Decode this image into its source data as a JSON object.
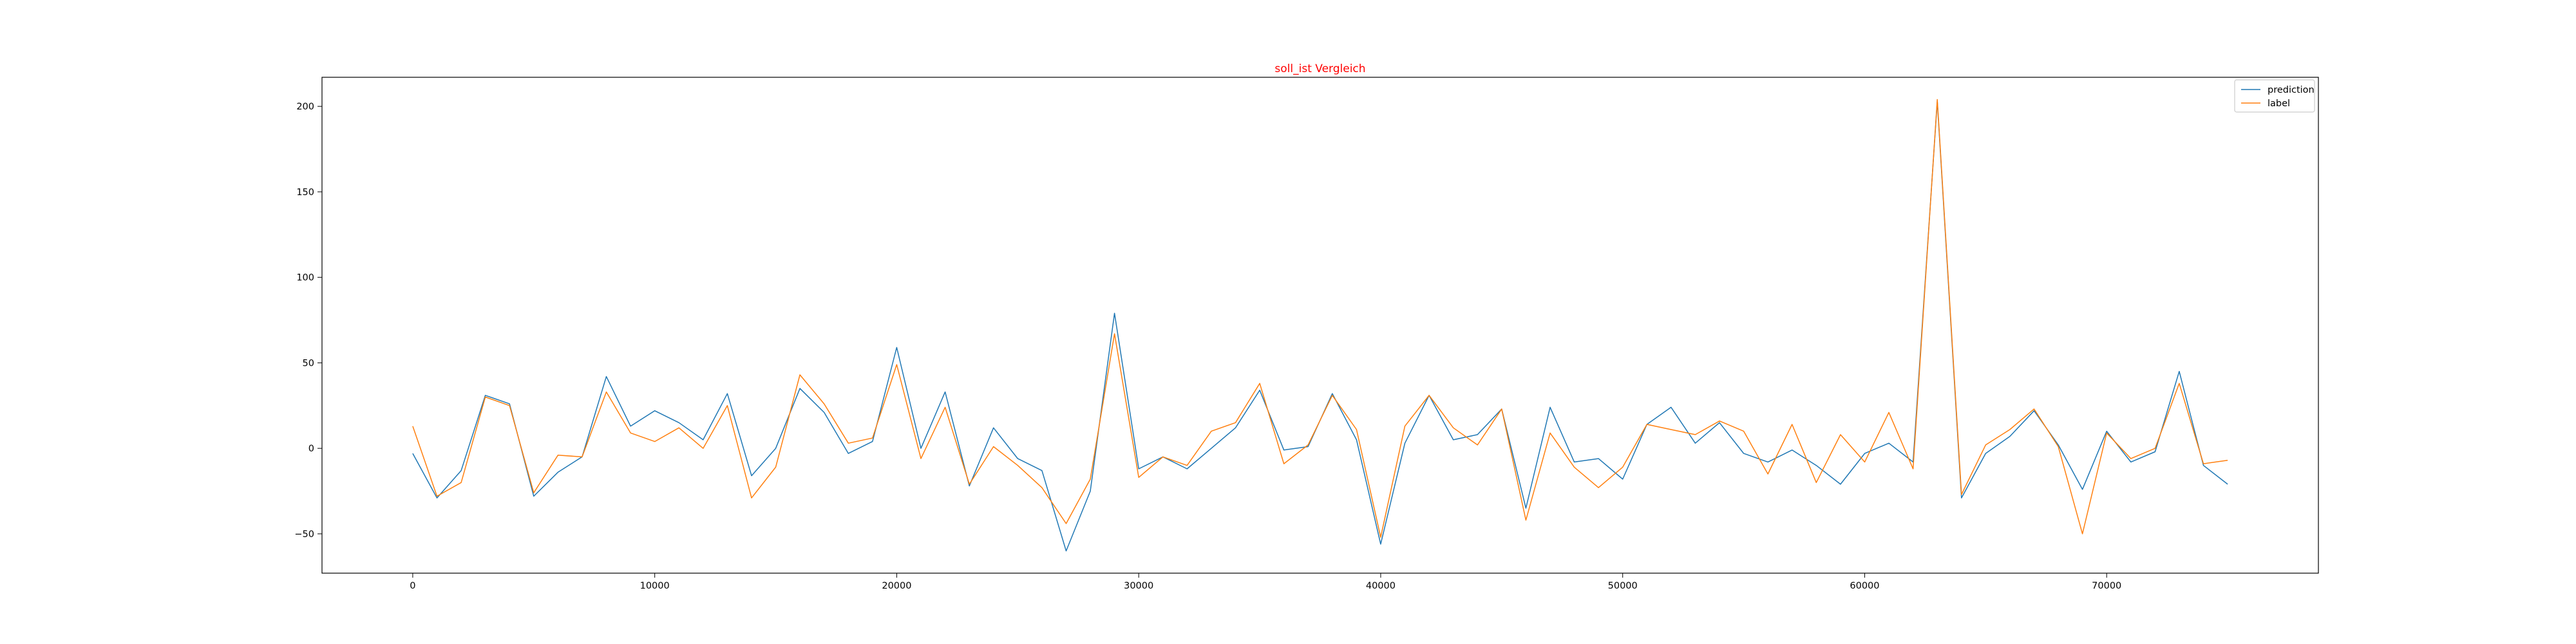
{
  "chart_data": {
    "type": "line",
    "title": "soll_ist Vergleich",
    "title_color": "#ff0000",
    "xlabel": "",
    "ylabel": "",
    "xlim": [
      -3750,
      78750
    ],
    "ylim": [
      -73,
      217
    ],
    "x_ticks": [
      0,
      10000,
      20000,
      30000,
      40000,
      50000,
      60000,
      70000
    ],
    "y_ticks": [
      -50,
      0,
      50,
      100,
      150,
      200
    ],
    "grid": false,
    "legend_position": "upper right",
    "x": [
      0,
      1000,
      2000,
      3000,
      4000,
      5000,
      6000,
      7000,
      8000,
      9000,
      10000,
      11000,
      12000,
      13000,
      14000,
      15000,
      16000,
      17000,
      18000,
      19000,
      20000,
      21000,
      22000,
      23000,
      24000,
      25000,
      26000,
      27000,
      28000,
      29000,
      30000,
      31000,
      32000,
      33000,
      34000,
      35000,
      36000,
      37000,
      38000,
      39000,
      40000,
      41000,
      42000,
      43000,
      44000,
      45000,
      46000,
      47000,
      48000,
      49000,
      50000,
      51000,
      52000,
      53000,
      54000,
      55000,
      56000,
      57000,
      58000,
      59000,
      60000,
      61000,
      62000,
      63000,
      64000,
      65000,
      66000,
      67000,
      68000,
      69000,
      70000,
      71000,
      72000,
      73000,
      74000,
      75000
    ],
    "series": [
      {
        "name": "prediction",
        "color": "#1f77b4",
        "values": [
          -3,
          -29,
          -13,
          31,
          26,
          -28,
          -14,
          -5,
          42,
          13,
          22,
          15,
          5,
          32,
          -16,
          0,
          35,
          21,
          -3,
          4,
          59,
          0,
          33,
          -22,
          12,
          -6,
          -13,
          -60,
          -25,
          79,
          -12,
          -5,
          -12,
          0,
          12,
          34,
          -1,
          1,
          32,
          5,
          -56,
          3,
          31,
          5,
          8,
          23,
          -35,
          24,
          -8,
          -6,
          -18,
          14,
          24,
          3,
          15,
          -3,
          -8,
          -1,
          -10,
          -21,
          -3,
          3,
          -8,
          203,
          -29,
          -3,
          7,
          22,
          2,
          -24,
          10,
          -8,
          -2,
          45,
          -10,
          -21
        ]
      },
      {
        "name": "label",
        "color": "#ff7f0e",
        "values": [
          13,
          -28,
          -20,
          30,
          25,
          -26,
          -4,
          -5,
          33,
          9,
          4,
          12,
          0,
          25,
          -29,
          -11,
          43,
          26,
          3,
          6,
          49,
          -6,
          24,
          -21,
          1,
          -10,
          -23,
          -44,
          -18,
          67,
          -17,
          -5,
          -10,
          10,
          15,
          38,
          -9,
          2,
          31,
          11,
          -52,
          13,
          31,
          12,
          2,
          23,
          -42,
          9,
          -11,
          -23,
          -11,
          14,
          11,
          8,
          16,
          10,
          -15,
          14,
          -20,
          8,
          -8,
          21,
          -12,
          204,
          -27,
          2,
          11,
          23,
          1,
          -50,
          9,
          -6,
          0,
          38,
          -9,
          -7
        ]
      }
    ]
  }
}
